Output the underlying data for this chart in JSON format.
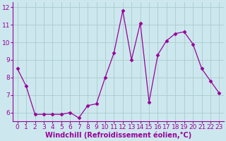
{
  "x": [
    0,
    1,
    2,
    3,
    4,
    5,
    6,
    7,
    8,
    9,
    10,
    11,
    12,
    13,
    14,
    15,
    16,
    17,
    18,
    19,
    20,
    21,
    22,
    23
  ],
  "y": [
    8.5,
    7.5,
    5.9,
    5.9,
    5.9,
    5.9,
    6.0,
    5.7,
    6.4,
    6.5,
    8.0,
    9.4,
    11.8,
    9.0,
    11.1,
    6.6,
    9.3,
    10.1,
    10.5,
    10.6,
    9.9,
    8.5,
    7.8,
    7.1
  ],
  "line_color": "#990099",
  "marker": "D",
  "marker_size": 2.5,
  "bg_color": "#cce8ee",
  "grid_color": "#aacccc",
  "xlabel": "Windchill (Refroidissement éolien,°C)",
  "xlabel_color": "#990099",
  "xlabel_fontsize": 7,
  "tick_fontsize": 6.5,
  "tick_color": "#990099",
  "axis_color": "#990099",
  "ylim": [
    5.5,
    12.3
  ],
  "yticks": [
    6,
    7,
    8,
    9,
    10,
    11,
    12
  ],
  "xlim": [
    -0.5,
    23.5
  ],
  "xticks": [
    0,
    1,
    2,
    3,
    4,
    5,
    6,
    7,
    8,
    9,
    10,
    11,
    12,
    13,
    14,
    15,
    16,
    17,
    18,
    19,
    20,
    21,
    22,
    23
  ]
}
